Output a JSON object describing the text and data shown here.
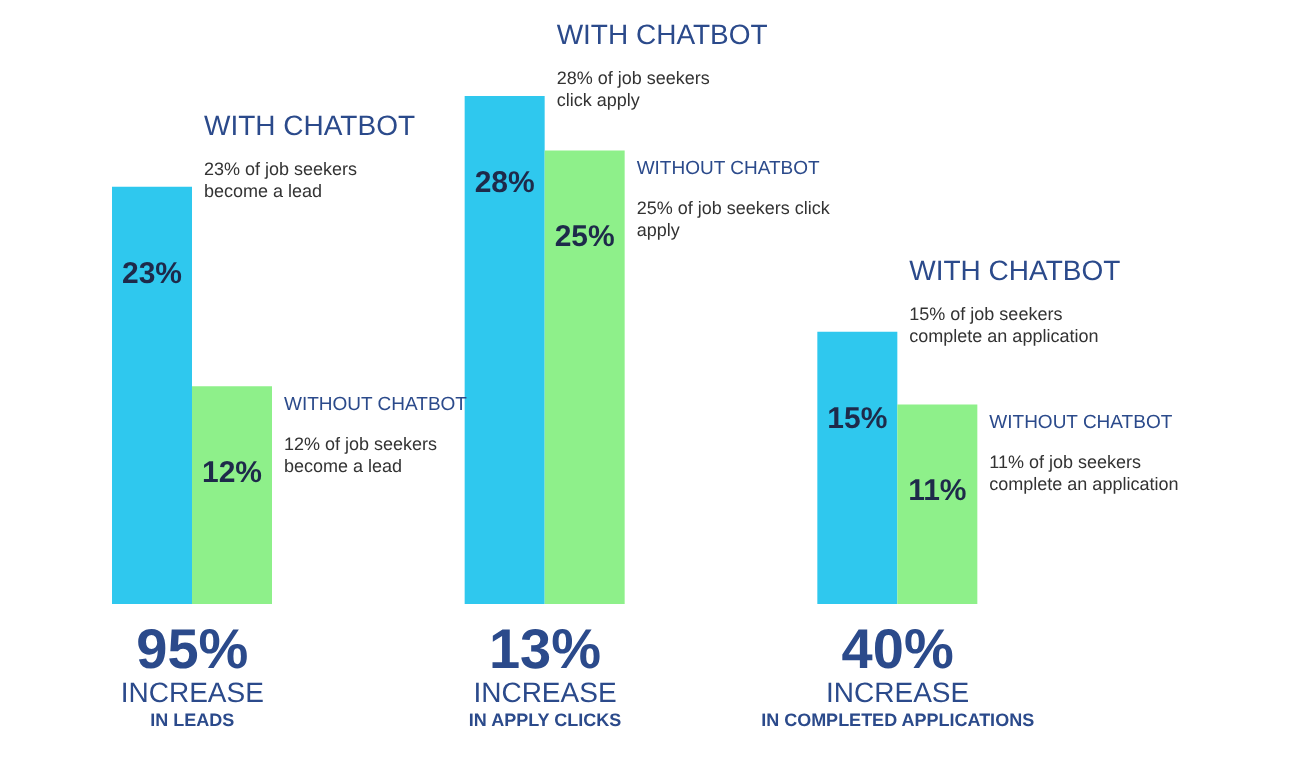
{
  "chart_data": {
    "type": "bar",
    "categories": [
      "95% INCREASE IN LEADS",
      "13% INCREASE IN APPLY CLICKS",
      "40% INCREASE IN COMPLETED APPLICATIONS"
    ],
    "series": [
      {
        "name": "WITH CHATBOT",
        "color": "#2fc8ee",
        "values": [
          23,
          28,
          15
        ],
        "value_labels": [
          "23%",
          "28%",
          "15%"
        ]
      },
      {
        "name": "WITHOUT CHATBOT",
        "color": "#8ef08a",
        "values": [
          12,
          25,
          11
        ],
        "value_labels": [
          "12%",
          "25%",
          "11%"
        ]
      }
    ],
    "annotations": [
      "23% of job seekers become a lead",
      "28% of job seekers click apply",
      "15% of job seekers complete an application",
      "12% of job seekers become a lead",
      "25% of job seekers click apply",
      "11% of job seekers complete an application"
    ]
  }
}
